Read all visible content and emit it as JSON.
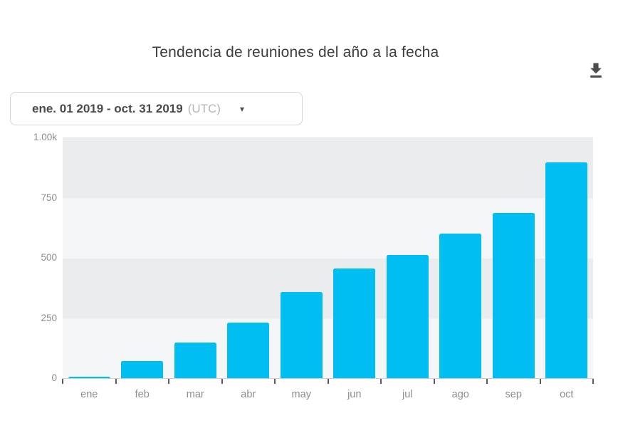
{
  "title": "Tendencia de reuniones del año a la fecha",
  "date_range_selector": {
    "label": "ene. 01 2019 - oct. 31 2019",
    "timezone": "(UTC)"
  },
  "icons": {
    "download": "download-arrow-with-bar",
    "chevron_down": "▾"
  },
  "colors": {
    "bar": "#00bdf2",
    "band_dark": "#ebecee",
    "band_light": "#f5f6f8",
    "axis_line": "#cfcfcf",
    "tick": "#5a5a5a",
    "axis_label": "#8d8d8d",
    "title_text": "#3d3d3d",
    "date_text": "#4a4a4a",
    "utc_text": "#b6b6b6",
    "icon": "#4d4d4d",
    "border": "#d5d5d5"
  },
  "chart_data": {
    "type": "bar",
    "title": "Tendencia de reuniones del año a la fecha",
    "categories": [
      "ene",
      "feb",
      "mar",
      "abr",
      "may",
      "jun",
      "jul",
      "ago",
      "sep",
      "oct"
    ],
    "values": [
      10,
      75,
      150,
      235,
      360,
      460,
      515,
      605,
      690,
      900
    ],
    "xlabel": "",
    "ylabel": "",
    "ylim": [
      0,
      1000
    ],
    "yticks": [
      {
        "label": "1.00k",
        "value": 1000
      },
      {
        "label": "750",
        "value": 750
      },
      {
        "label": "500",
        "value": 500
      },
      {
        "label": "250",
        "value": 250
      },
      {
        "label": "0",
        "value": 0
      }
    ],
    "grid": "alternating-horizontal-bands",
    "legend": "none"
  }
}
